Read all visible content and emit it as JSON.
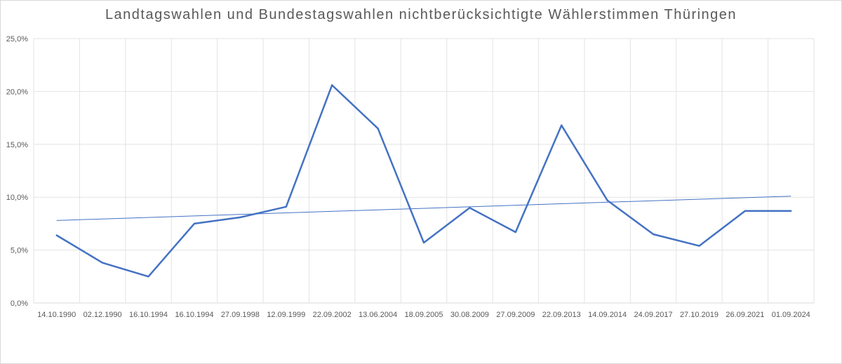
{
  "chart_data": {
    "type": "line",
    "title": "Landtagswahlen und Bundestagswahlen nichtberücksichtigte Wählerstimmen Thüringen",
    "categories": [
      "14.10.1990",
      "02.12.1990",
      "16.10.1994",
      "16.10.1994",
      "27.09.1998",
      "12.09.1999",
      "22.09.2002",
      "13.06.2004",
      "18.09.2005",
      "30.08.2009",
      "27.09.2009",
      "22.09.2013",
      "14.09.2014",
      "24.09.2017",
      "27.10.2019",
      "26.09.2021",
      "01.09.2024"
    ],
    "series": [
      {
        "values": [
          6.4,
          3.8,
          2.5,
          7.5,
          8.1,
          9.1,
          20.6,
          16.5,
          5.7,
          9.0,
          6.7,
          16.8,
          9.7,
          6.5,
          5.4,
          8.7,
          8.7
        ],
        "color": "#4472c4"
      }
    ],
    "trendline": {
      "type": "linear",
      "start": 7.8,
      "end": 10.1,
      "color": "#4472c4"
    },
    "y_ticks": [
      "0,0%",
      "5,0%",
      "10,0%",
      "15,0%",
      "20,0%",
      "25,0%"
    ],
    "ylim": [
      0,
      25
    ],
    "grid": true,
    "legend": "none"
  }
}
